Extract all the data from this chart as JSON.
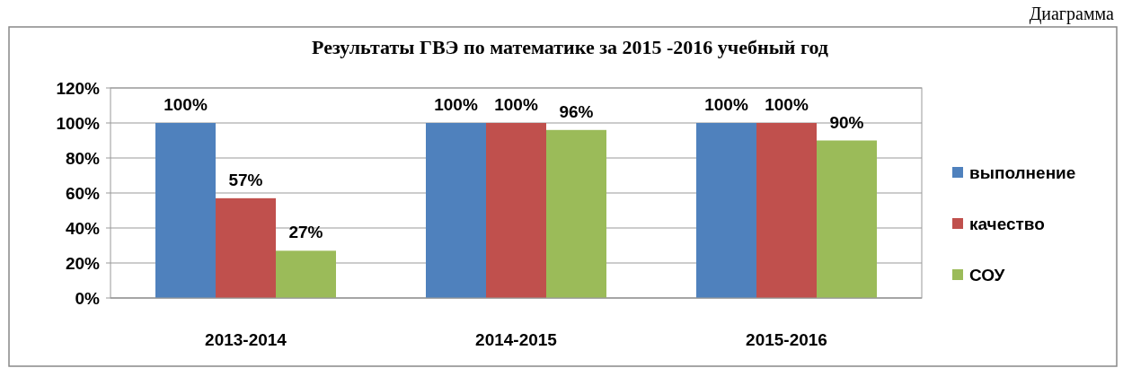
{
  "chart_data": {
    "type": "bar",
    "title": "Результаты ГВЭ по математике за 2015 -2016 учебный год",
    "annotations": [
      "Диаграмма"
    ],
    "categories": [
      "2013-2014",
      "2014-2015",
      "2015-2016"
    ],
    "series": [
      {
        "name": "выполнение",
        "color": "#4f81bd",
        "values": [
          100,
          100,
          100
        ],
        "value_labels": [
          "100%",
          "100%",
          "100%"
        ]
      },
      {
        "name": "качество",
        "color": "#c0504d",
        "values": [
          57,
          100,
          100
        ],
        "value_labels": [
          "57%",
          "100%",
          "100%"
        ]
      },
      {
        "name": "СОУ",
        "color": "#9bbb59",
        "values": [
          27,
          96,
          90
        ],
        "value_labels": [
          "27%",
          "96%",
          "90%"
        ]
      }
    ],
    "ylim": [
      0,
      120
    ],
    "yticks": [
      {
        "value": 0,
        "label": "0%"
      },
      {
        "value": 20,
        "label": "20%"
      },
      {
        "value": 40,
        "label": "40%"
      },
      {
        "value": 60,
        "label": "60%"
      },
      {
        "value": 80,
        "label": "80%"
      },
      {
        "value": 100,
        "label": "100%"
      },
      {
        "value": 120,
        "label": "120%"
      }
    ],
    "grid": "y",
    "legend": "right"
  }
}
